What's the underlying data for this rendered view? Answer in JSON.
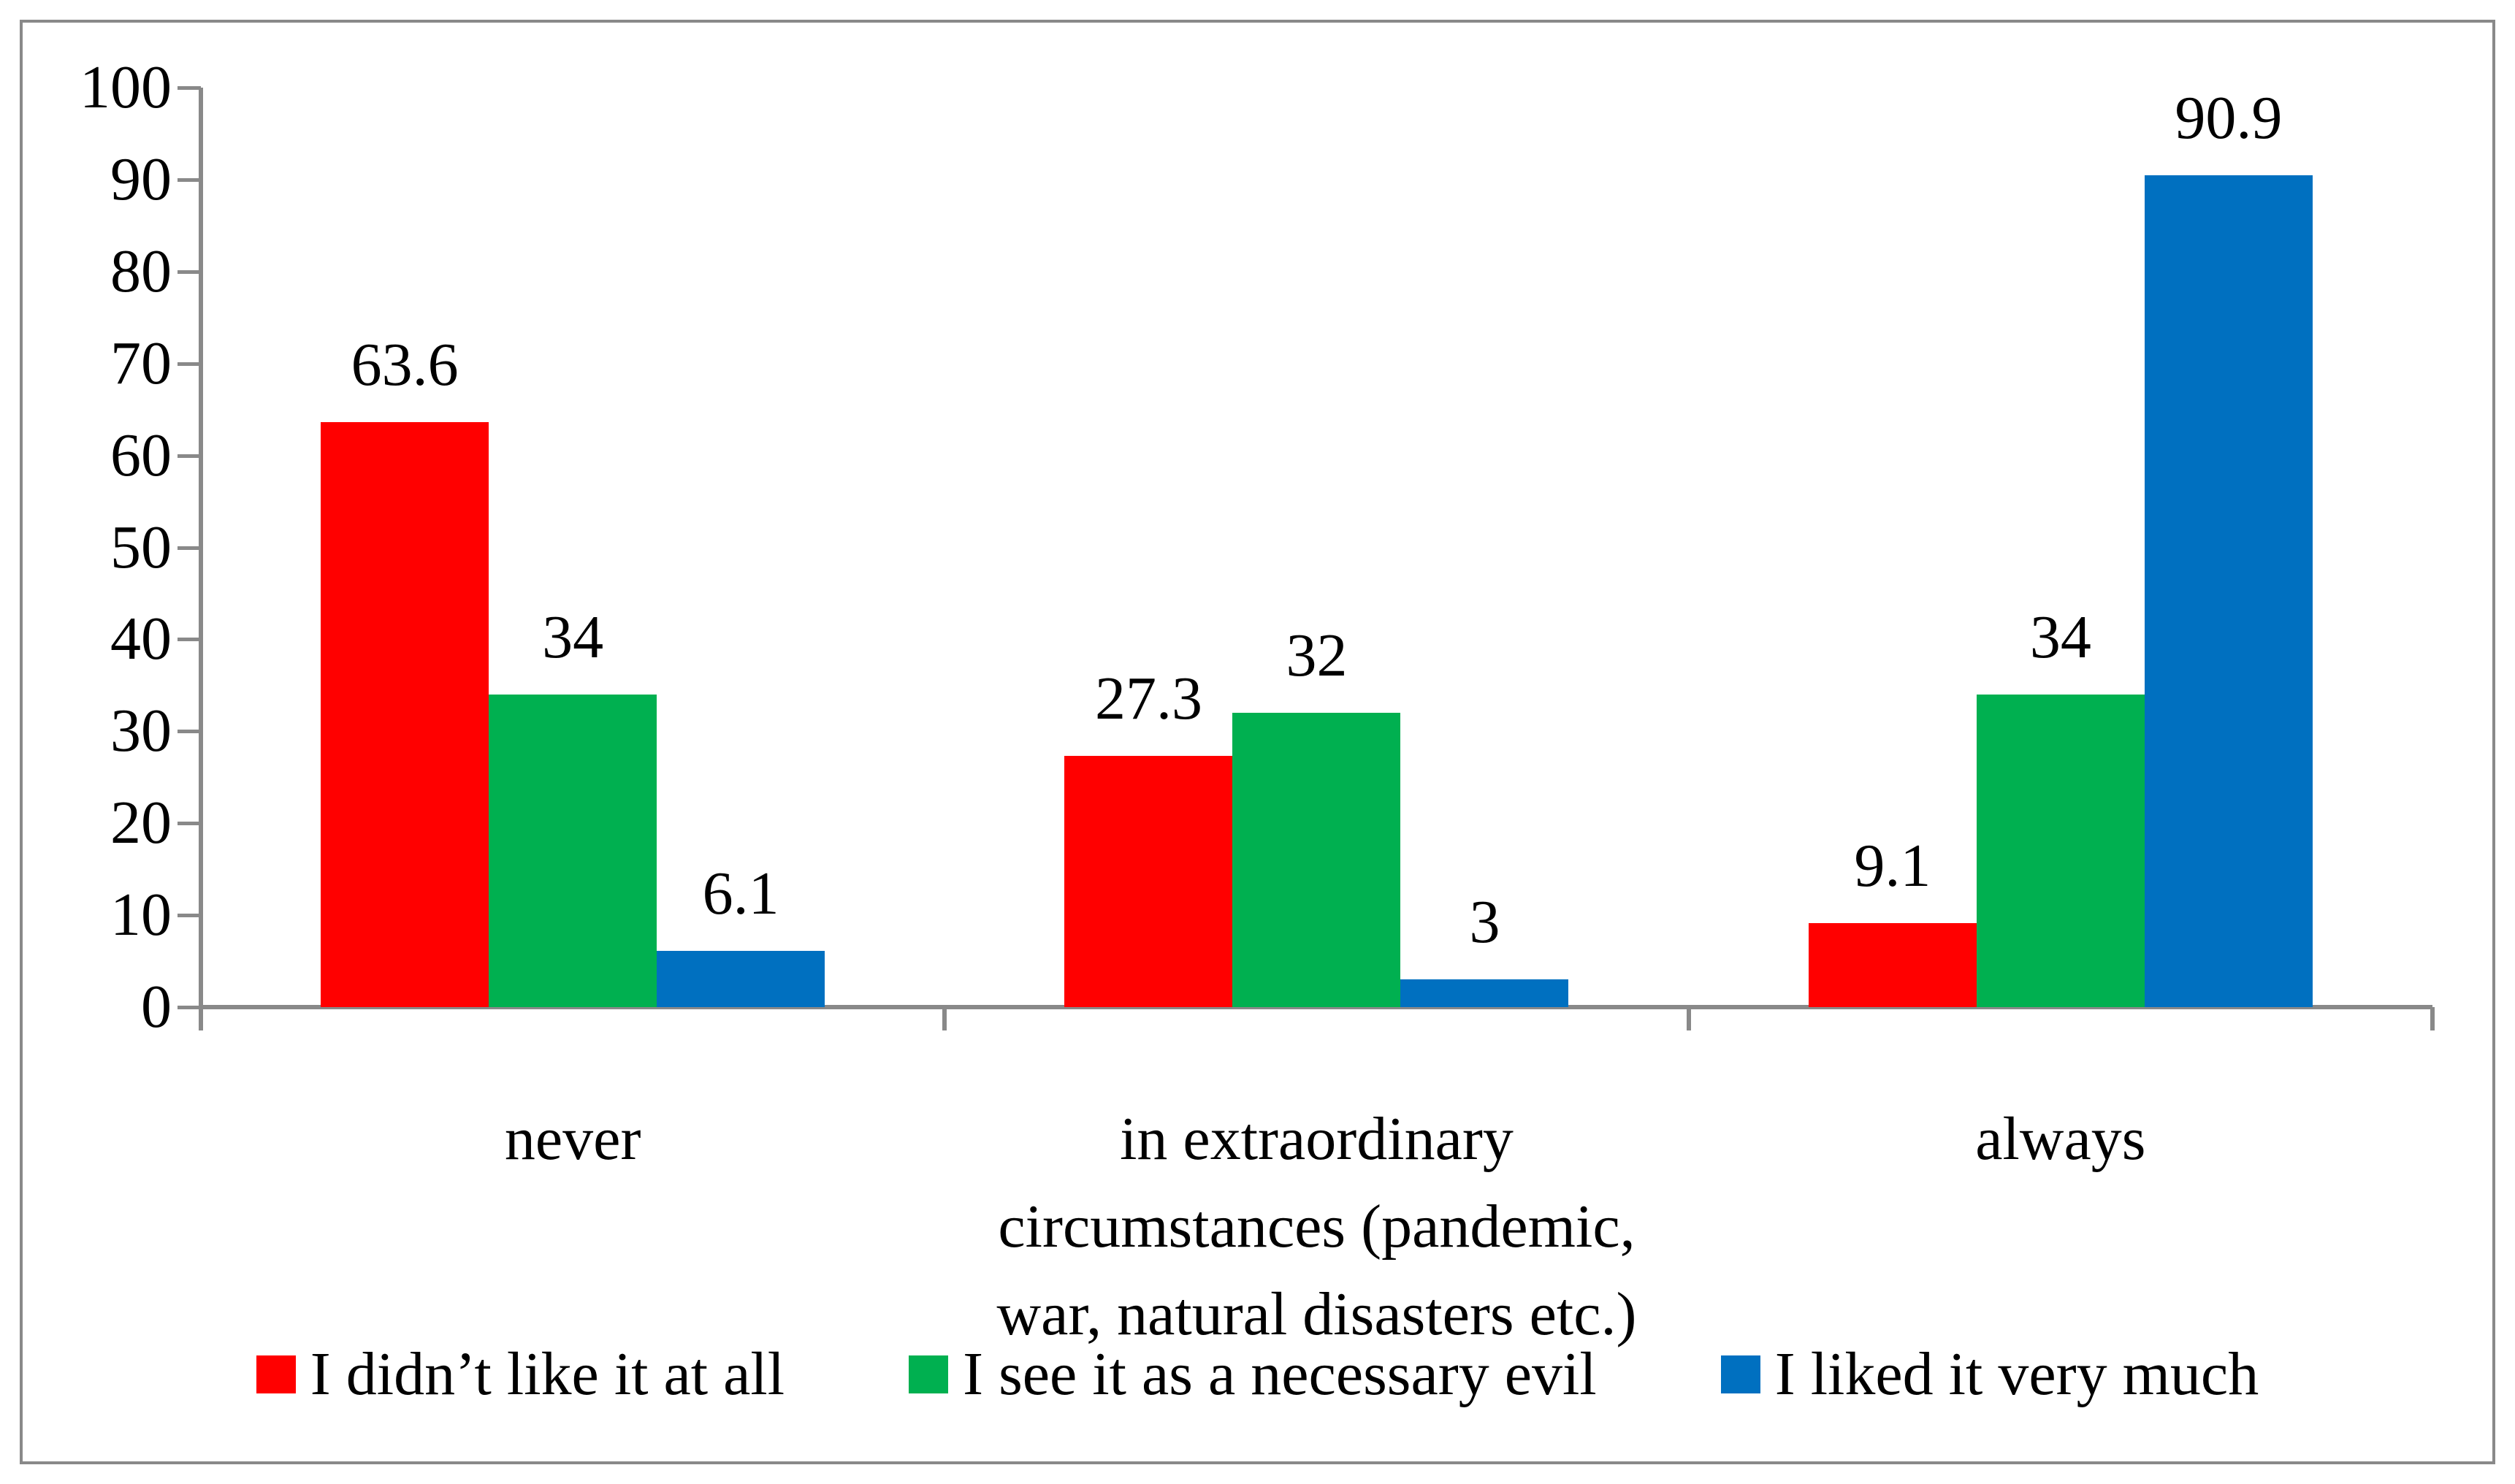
{
  "figure": {
    "background": "#FFFFFF",
    "border_color": "#898989",
    "axis_color": "#898989",
    "text_color": "#000000"
  },
  "chart_data": {
    "type": "bar",
    "title": "",
    "xlabel": "",
    "ylabel": "",
    "ylim": [
      0,
      100
    ],
    "yticks": [
      100,
      90,
      80,
      70,
      60,
      50,
      40,
      30,
      20,
      10,
      0
    ],
    "grid": false,
    "legend_position": "bottom",
    "categories": [
      "never",
      "in extraordinary circumstances (pandemic, war, natural disasters etc.)",
      "always"
    ],
    "category_label_lines": [
      [
        "never"
      ],
      [
        "in extraordinary",
        "circumstances (pandemic,",
        "war, natural disasters etc.)"
      ],
      [
        "always"
      ]
    ],
    "series": [
      {
        "name": "I didn’t like it at all",
        "color": "#FF0000",
        "values": [
          63.6,
          27.3,
          9.1
        ],
        "labels": [
          "63.6",
          "27.3",
          "9.1"
        ]
      },
      {
        "name": "I see it as a necessary evil",
        "color": "#00B050",
        "values": [
          34,
          32,
          34
        ],
        "labels": [
          "34",
          "32",
          "34"
        ]
      },
      {
        "name": "I liked it very much",
        "color": "#0070C0",
        "values": [
          6.1,
          3,
          90.9
        ],
        "labels": [
          "6.1",
          "3",
          "90.9"
        ]
      }
    ]
  }
}
